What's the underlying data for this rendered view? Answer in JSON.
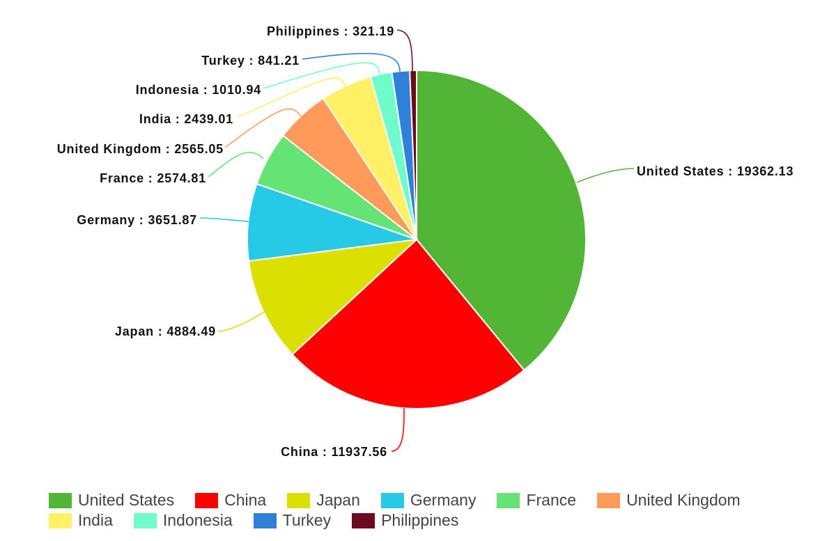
{
  "chart_data": {
    "type": "pie",
    "series": [
      {
        "name": "United States",
        "value": 19362.13,
        "label": "United States : 19362.13",
        "color": "#52b535"
      },
      {
        "name": "China",
        "value": 11937.56,
        "label": "China : 11937.56",
        "color": "#ff0000"
      },
      {
        "name": "Japan",
        "value": 4884.49,
        "label": "Japan : 4884.49",
        "color": "#dce000"
      },
      {
        "name": "Germany",
        "value": 3651.87,
        "label": "Germany : 3651.87",
        "color": "#27cae6"
      },
      {
        "name": "France",
        "value": 2574.81,
        "label": "France : 2574.81",
        "color": "#66e375"
      },
      {
        "name": "United Kingdom",
        "value": 2565.05,
        "label": "United Kingdom : 2565.05",
        "color": "#ff9a5a"
      },
      {
        "name": "India",
        "value": 2439.01,
        "label": "India : 2439.01",
        "color": "#fff066"
      },
      {
        "name": "Indonesia",
        "value": 1010.94,
        "label": "Indonesia : 1010.94",
        "color": "#6dfcca"
      },
      {
        "name": "Turkey",
        "value": 841.21,
        "label": "Turkey : 841.21",
        "color": "#2f80d9"
      },
      {
        "name": "Philippines",
        "value": 321.19,
        "label": "Philippines : 321.19",
        "color": "#6e0a1e"
      }
    ],
    "legend_position": "bottom"
  }
}
